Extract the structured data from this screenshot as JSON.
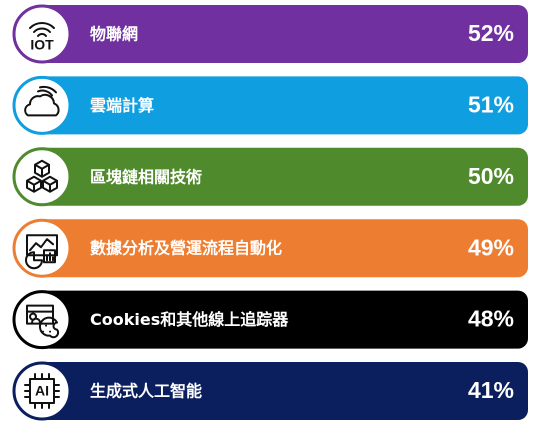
{
  "items": [
    {
      "label": "物聯網",
      "value": "52%",
      "color": "#7030a0",
      "icon_text": "IOT"
    },
    {
      "label": "雲端計算",
      "value": "51%",
      "color": "#0f9ee0"
    },
    {
      "label": "區塊鏈相關技術",
      "value": "50%",
      "color": "#4f8a2c"
    },
    {
      "label": "數據分析及營運流程自動化",
      "value": "49%",
      "color": "#ed7d31"
    },
    {
      "label": "Cookies和其他線上追踪器",
      "value": "48%",
      "color": "#000000"
    },
    {
      "label": "生成式人工智能",
      "value": "41%",
      "color": "#0b1f5e",
      "icon_text": "AI"
    }
  ]
}
